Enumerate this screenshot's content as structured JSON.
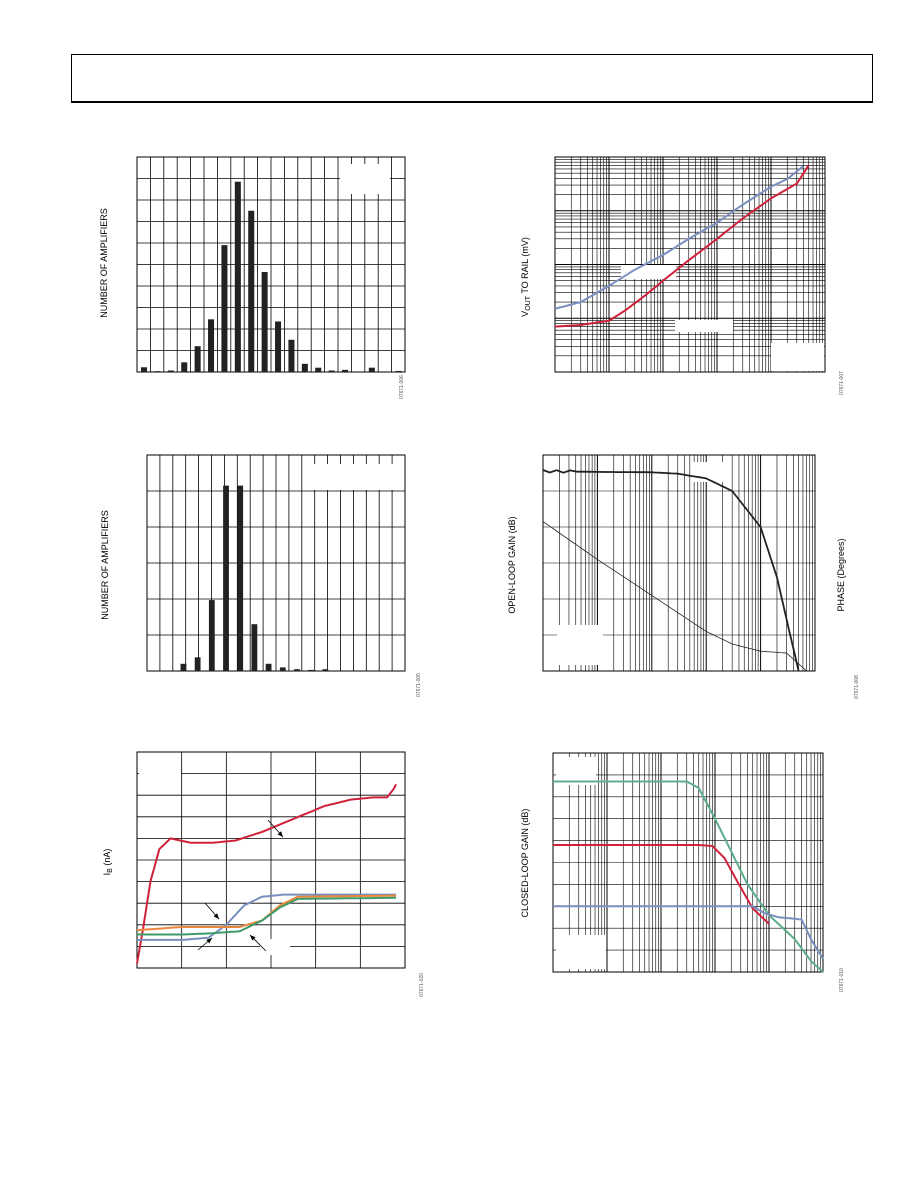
{
  "page": {
    "header": ""
  },
  "chart_data": [
    {
      "id": "hist1",
      "type": "bar",
      "ylabel": "NUMBER OF AMPLIFIERS",
      "code": "07671-006",
      "grid": true,
      "xlim": [
        0,
        20
      ],
      "ylim": [
        0,
        10
      ],
      "bars": [
        {
          "x": 0.3,
          "v": 0.22
        },
        {
          "x": 1.3,
          "v": 0.04
        },
        {
          "x": 2.3,
          "v": 0.07
        },
        {
          "x": 3.3,
          "v": 0.45
        },
        {
          "x": 4.3,
          "v": 1.2
        },
        {
          "x": 5.3,
          "v": 2.45
        },
        {
          "x": 6.3,
          "v": 5.9
        },
        {
          "x": 7.3,
          "v": 8.85
        },
        {
          "x": 8.3,
          "v": 7.5
        },
        {
          "x": 9.3,
          "v": 4.65
        },
        {
          "x": 10.3,
          "v": 2.35
        },
        {
          "x": 11.3,
          "v": 1.5
        },
        {
          "x": 12.3,
          "v": 0.38
        },
        {
          "x": 13.3,
          "v": 0.2
        },
        {
          "x": 14.3,
          "v": 0.07
        },
        {
          "x": 15.3,
          "v": 0.1
        },
        {
          "x": 17.3,
          "v": 0.2
        },
        {
          "x": 19.3,
          "v": 0.05
        }
      ]
    },
    {
      "id": "vout",
      "type": "line",
      "ylabel_main": "V",
      "ylabel_sub": "OUT",
      "ylabel_rest": " TO RAIL (mV)",
      "code": "07671-007",
      "xscale": "log",
      "yscale": "log",
      "xlim": [
        0.001,
        100
      ],
      "ylim": [
        1,
        10000
      ],
      "series": [
        {
          "color": "#7a8fbf",
          "points": [
            [
              0.001,
              15
            ],
            [
              0.003,
              20
            ],
            [
              0.01,
              40
            ],
            [
              0.03,
              80
            ],
            [
              0.1,
              150
            ],
            [
              0.3,
              300
            ],
            [
              1,
              600
            ],
            [
              3,
              1300
            ],
            [
              10,
              2800
            ],
            [
              20,
              3900
            ],
            [
              40,
              6800
            ]
          ]
        },
        {
          "color": "#d0213a",
          "points": [
            [
              0.001,
              7
            ],
            [
              0.003,
              7.5
            ],
            [
              0.01,
              9
            ],
            [
              0.02,
              14
            ],
            [
              0.05,
              28
            ],
            [
              0.1,
              50
            ],
            [
              0.3,
              120
            ],
            [
              1,
              300
            ],
            [
              3,
              720
            ],
            [
              10,
              1700
            ],
            [
              30,
              3200
            ],
            [
              50,
              7000
            ]
          ]
        }
      ]
    },
    {
      "id": "hist2",
      "type": "bar",
      "ylabel": "NUMBER OF AMPLIFIERS",
      "code": "07671-005",
      "grid": true,
      "xlim": [
        0,
        20
      ],
      "ylim": [
        0,
        6
      ],
      "bars": [
        {
          "x": 2.6,
          "v": 0.2
        },
        {
          "x": 3.7,
          "v": 0.38
        },
        {
          "x": 4.8,
          "v": 1.97
        },
        {
          "x": 5.9,
          "v": 5.15
        },
        {
          "x": 7.0,
          "v": 5.15
        },
        {
          "x": 8.1,
          "v": 1.3
        },
        {
          "x": 9.2,
          "v": 0.2
        },
        {
          "x": 10.3,
          "v": 0.1
        },
        {
          "x": 11.4,
          "v": 0.05
        },
        {
          "x": 12.5,
          "v": 0.03
        },
        {
          "x": 13.6,
          "v": 0.05
        }
      ]
    },
    {
      "id": "olg",
      "type": "line",
      "ylabel_left": "OPEN-LOOP GAIN (dB)",
      "ylabel_right": "PHASE (Degrees)",
      "code": "07671-008",
      "xscale": "log",
      "xlim": [
        1,
        100000
      ],
      "ylim": [
        0,
        6
      ],
      "series": [
        {
          "name_hidden": true,
          "color": "#222222",
          "width": 1.8,
          "noisy": true,
          "points": [
            [
              1,
              5.55
            ],
            [
              10,
              5.53
            ],
            [
              100,
              5.52
            ],
            [
              300,
              5.48
            ],
            [
              1000,
              5.35
            ],
            [
              3000,
              5.0
            ],
            [
              10000,
              4.0
            ],
            [
              20000,
              2.6
            ],
            [
              35000,
              1.0
            ],
            [
              50000,
              0.0
            ]
          ]
        },
        {
          "name_hidden": true,
          "color": "#222222",
          "width": 0.8,
          "points": [
            [
              1,
              4.15
            ],
            [
              10,
              3.1
            ],
            [
              100,
              2.1
            ],
            [
              1000,
              1.1
            ],
            [
              3000,
              0.75
            ],
            [
              10000,
              0.55
            ],
            [
              30000,
              0.5
            ],
            [
              70000,
              0.0
            ]
          ]
        }
      ]
    },
    {
      "id": "ib",
      "type": "line",
      "ylabel_main": "I",
      "ylabel_sub": "B",
      "ylabel_rest": " (nA)",
      "code": "07671-020",
      "xlim": [
        0,
        6
      ],
      "ylim": [
        0,
        10
      ],
      "series": [
        {
          "color": "#d0213a",
          "points": [
            [
              0.0,
              0.2
            ],
            [
              0.15,
              2.0
            ],
            [
              0.3,
              4.0
            ],
            [
              0.5,
              5.5
            ],
            [
              0.75,
              6.0
            ],
            [
              1.2,
              5.8
            ],
            [
              1.7,
              5.8
            ],
            [
              2.2,
              5.9
            ],
            [
              2.8,
              6.3
            ],
            [
              3.5,
              6.9
            ],
            [
              4.2,
              7.5
            ],
            [
              4.8,
              7.8
            ],
            [
              5.3,
              7.9
            ],
            [
              5.6,
              7.9
            ],
            [
              5.75,
              8.3
            ],
            [
              5.8,
              8.5
            ]
          ]
        },
        {
          "color": "#7a8fbf",
          "points": [
            [
              0.0,
              1.3
            ],
            [
              1.0,
              1.3
            ],
            [
              1.6,
              1.4
            ],
            [
              2.0,
              2.0
            ],
            [
              2.4,
              2.9
            ],
            [
              2.8,
              3.3
            ],
            [
              3.3,
              3.4
            ],
            [
              5.8,
              3.4
            ]
          ]
        },
        {
          "color": "#e8873a",
          "points": [
            [
              0.0,
              1.75
            ],
            [
              1.0,
              1.9
            ],
            [
              1.6,
              1.9
            ],
            [
              2.3,
              1.9
            ],
            [
              2.8,
              2.2
            ],
            [
              3.2,
              2.9
            ],
            [
              3.6,
              3.3
            ],
            [
              5.8,
              3.35
            ]
          ]
        },
        {
          "color": "#3e9a6a",
          "points": [
            [
              0.0,
              1.55
            ],
            [
              1.0,
              1.55
            ],
            [
              1.6,
              1.6
            ],
            [
              2.3,
              1.7
            ],
            [
              2.8,
              2.2
            ],
            [
              3.2,
              2.8
            ],
            [
              3.6,
              3.2
            ],
            [
              5.8,
              3.25
            ]
          ]
        }
      ]
    },
    {
      "id": "clg",
      "type": "line",
      "ylabel": "CLOSED-LOOP GAIN (dB)",
      "code": "07671-010",
      "xscale": "log",
      "xlim": [
        1000,
        100000000
      ],
      "ylim": [
        0,
        10
      ],
      "series": [
        {
          "color": "#5cae8b",
          "points": [
            [
              1000,
              8.7
            ],
            [
              100000,
              8.7
            ],
            [
              300000,
              8.7
            ],
            [
              500000,
              8.4
            ],
            [
              1000000,
              7.0
            ],
            [
              2000000,
              5.5
            ],
            [
              4000000,
              4.0
            ],
            [
              10000000,
              2.6
            ],
            [
              30000000,
              1.5
            ],
            [
              60000000,
              0.5
            ],
            [
              100000000,
              0.0
            ]
          ]
        },
        {
          "color": "#d0213a",
          "points": [
            [
              1000,
              5.8
            ],
            [
              500000,
              5.8
            ],
            [
              900000,
              5.75
            ],
            [
              1500000,
              5.2
            ],
            [
              2500000,
              4.2
            ],
            [
              5000000,
              2.9
            ],
            [
              10000000,
              2.2
            ]
          ]
        },
        {
          "color": "#7a8fbf",
          "points": [
            [
              1000,
              3.0
            ],
            [
              3000000,
              3.0
            ],
            [
              5000000,
              3.0
            ],
            [
              8000000,
              2.7
            ],
            [
              15000000,
              2.5
            ],
            [
              40000000,
              2.4
            ],
            [
              60000000,
              1.5
            ],
            [
              100000000,
              0.6
            ]
          ]
        }
      ]
    }
  ]
}
